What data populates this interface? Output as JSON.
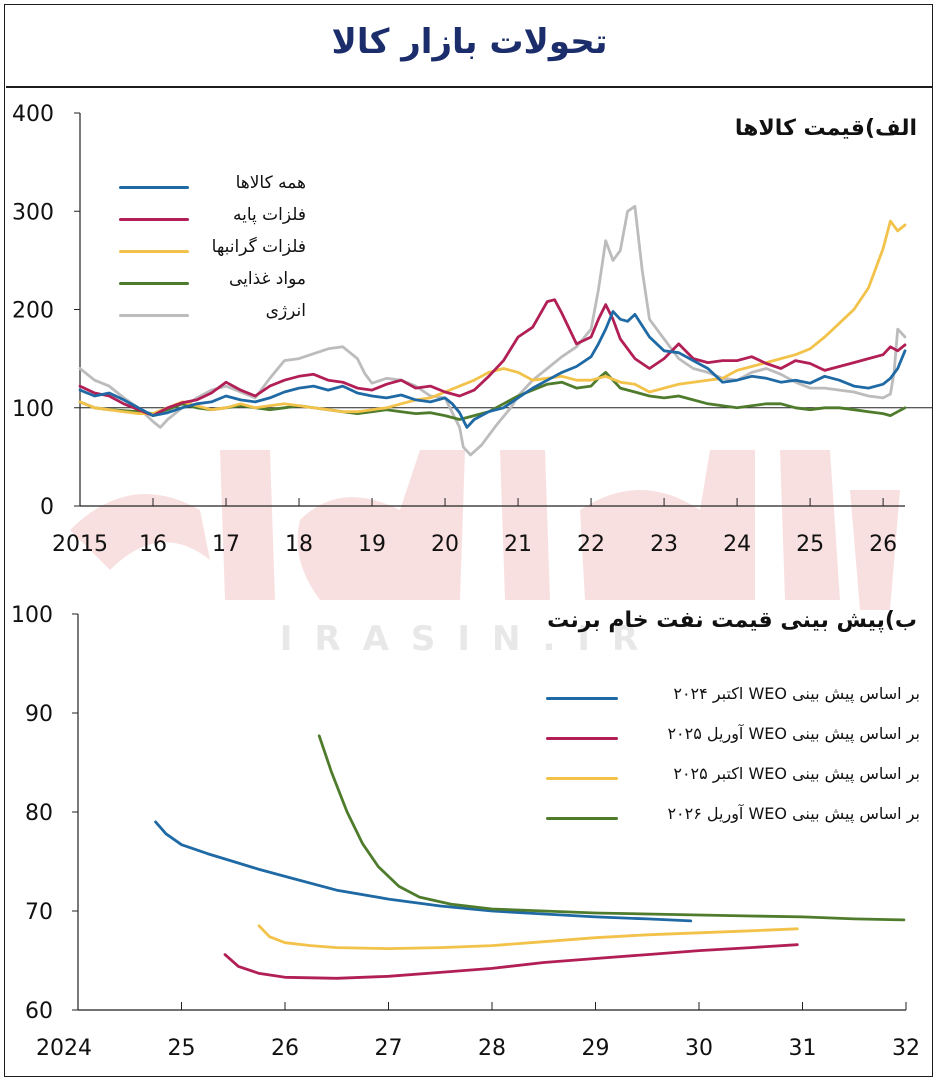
{
  "page": {
    "title": "تحولات بازار کالا",
    "watermark_text": "IRASIN.IR"
  },
  "chart_data": [
    {
      "type": "line",
      "title": "الف)قیمت کالاها",
      "xlabel": "",
      "ylabel": "",
      "x_tick_labels": [
        "2015",
        "16",
        "17",
        "18",
        "19",
        "20",
        "21",
        "22",
        "23",
        "24",
        "25",
        "26"
      ],
      "y_tick_labels": [
        "0",
        "100",
        "200",
        "300",
        "400"
      ],
      "ylim": [
        0,
        400
      ],
      "xlim": [
        2015.0,
        2026.3
      ],
      "reference_line": 100,
      "grid": false,
      "legend_position": "top-left",
      "series": [
        {
          "name": "همه کالاها",
          "color": "#1f6aa5",
          "x": [
            2015.0,
            2015.2,
            2015.4,
            2015.6,
            2015.8,
            2016.0,
            2016.2,
            2016.4,
            2016.6,
            2016.8,
            2017.0,
            2017.2,
            2017.4,
            2017.6,
            2017.8,
            2018.0,
            2018.2,
            2018.4,
            2018.6,
            2018.8,
            2019.0,
            2019.2,
            2019.4,
            2019.6,
            2019.8,
            2020.0,
            2020.1,
            2020.2,
            2020.3,
            2020.4,
            2020.6,
            2020.8,
            2021.0,
            2021.2,
            2021.4,
            2021.6,
            2021.8,
            2022.0,
            2022.1,
            2022.2,
            2022.3,
            2022.4,
            2022.5,
            2022.6,
            2022.8,
            2023.0,
            2023.2,
            2023.4,
            2023.6,
            2023.8,
            2024.0,
            2024.2,
            2024.4,
            2024.6,
            2024.8,
            2025.0,
            2025.2,
            2025.4,
            2025.6,
            2025.8,
            2026.0,
            2026.1,
            2026.2,
            2026.3
          ],
          "y": [
            118,
            112,
            115,
            108,
            100,
            92,
            95,
            100,
            104,
            106,
            112,
            108,
            106,
            110,
            116,
            120,
            122,
            118,
            122,
            115,
            112,
            110,
            113,
            108,
            106,
            110,
            104,
            95,
            80,
            88,
            96,
            100,
            110,
            120,
            128,
            136,
            142,
            152,
            165,
            180,
            198,
            190,
            188,
            195,
            172,
            158,
            156,
            148,
            140,
            126,
            128,
            132,
            130,
            126,
            128,
            125,
            132,
            128,
            122,
            120,
            124,
            130,
            140,
            158
          ]
        },
        {
          "name": "فلزات پایه",
          "color": "#b11f56",
          "x": [
            2015.0,
            2015.2,
            2015.4,
            2015.6,
            2015.8,
            2016.0,
            2016.2,
            2016.4,
            2016.6,
            2016.8,
            2017.0,
            2017.2,
            2017.4,
            2017.6,
            2017.8,
            2018.0,
            2018.2,
            2018.4,
            2018.6,
            2018.8,
            2019.0,
            2019.2,
            2019.4,
            2019.6,
            2019.8,
            2020.0,
            2020.2,
            2020.4,
            2020.6,
            2020.8,
            2021.0,
            2021.2,
            2021.4,
            2021.5,
            2021.6,
            2021.8,
            2022.0,
            2022.1,
            2022.2,
            2022.3,
            2022.4,
            2022.6,
            2022.8,
            2023.0,
            2023.2,
            2023.4,
            2023.6,
            2023.8,
            2024.0,
            2024.2,
            2024.4,
            2024.6,
            2024.8,
            2025.0,
            2025.2,
            2025.4,
            2025.6,
            2025.8,
            2026.0,
            2026.1,
            2026.2,
            2026.3
          ],
          "y": [
            122,
            115,
            112,
            104,
            98,
            92,
            100,
            105,
            108,
            115,
            126,
            118,
            112,
            122,
            128,
            132,
            134,
            128,
            126,
            120,
            118,
            124,
            128,
            120,
            122,
            116,
            112,
            118,
            132,
            148,
            172,
            182,
            208,
            210,
            196,
            165,
            172,
            190,
            205,
            190,
            170,
            150,
            140,
            150,
            165,
            150,
            146,
            148,
            148,
            152,
            145,
            140,
            148,
            145,
            138,
            142,
            146,
            150,
            154,
            162,
            158,
            164
          ]
        },
        {
          "name": "فلزات گرانبها",
          "color": "#f2c24a",
          "x": [
            2015.0,
            2015.2,
            2015.4,
            2015.6,
            2015.8,
            2016.0,
            2016.2,
            2016.4,
            2016.6,
            2016.8,
            2017.0,
            2017.2,
            2017.4,
            2017.6,
            2017.8,
            2018.0,
            2018.2,
            2018.4,
            2018.6,
            2018.8,
            2019.0,
            2019.2,
            2019.4,
            2019.6,
            2019.8,
            2020.0,
            2020.2,
            2020.4,
            2020.6,
            2020.8,
            2021.0,
            2021.2,
            2021.4,
            2021.6,
            2021.8,
            2022.0,
            2022.2,
            2022.4,
            2022.6,
            2022.8,
            2023.0,
            2023.2,
            2023.4,
            2023.6,
            2023.8,
            2024.0,
            2024.2,
            2024.4,
            2024.6,
            2024.8,
            2025.0,
            2025.2,
            2025.4,
            2025.6,
            2025.8,
            2026.0,
            2026.1,
            2026.2,
            2026.3
          ],
          "y": [
            106,
            100,
            98,
            96,
            94,
            94,
            100,
            106,
            102,
            98,
            100,
            104,
            100,
            102,
            104,
            102,
            100,
            98,
            96,
            96,
            98,
            100,
            104,
            108,
            110,
            116,
            122,
            128,
            136,
            140,
            136,
            128,
            130,
            132,
            128,
            128,
            132,
            126,
            124,
            116,
            120,
            124,
            126,
            128,
            130,
            138,
            142,
            146,
            150,
            154,
            160,
            172,
            186,
            200,
            222,
            262,
            290,
            280,
            286
          ]
        },
        {
          "name": "مواد غذایی",
          "color": "#4e7c2c",
          "x": [
            2015.0,
            2015.2,
            2015.4,
            2015.6,
            2015.8,
            2016.0,
            2016.2,
            2016.4,
            2016.6,
            2016.8,
            2017.0,
            2017.2,
            2017.4,
            2017.6,
            2017.8,
            2018.0,
            2018.2,
            2018.4,
            2018.6,
            2018.8,
            2019.0,
            2019.2,
            2019.4,
            2019.6,
            2019.8,
            2020.0,
            2020.2,
            2020.4,
            2020.6,
            2020.8,
            2021.0,
            2021.2,
            2021.4,
            2021.6,
            2021.8,
            2022.0,
            2022.1,
            2022.2,
            2022.3,
            2022.4,
            2022.6,
            2022.8,
            2023.0,
            2023.2,
            2023.4,
            2023.6,
            2023.8,
            2024.0,
            2024.2,
            2024.4,
            2024.6,
            2024.8,
            2025.0,
            2025.2,
            2025.4,
            2025.6,
            2025.8,
            2026.0,
            2026.1,
            2026.2,
            2026.3
          ],
          "y": [
            106,
            100,
            98,
            97,
            96,
            94,
            98,
            104,
            100,
            98,
            100,
            102,
            100,
            98,
            100,
            102,
            100,
            98,
            96,
            94,
            96,
            98,
            96,
            94,
            95,
            92,
            88,
            92,
            96,
            104,
            112,
            118,
            124,
            126,
            120,
            122,
            130,
            136,
            128,
            120,
            116,
            112,
            110,
            112,
            108,
            104,
            102,
            100,
            102,
            104,
            104,
            100,
            98,
            100,
            100,
            98,
            96,
            94,
            92,
            96,
            100
          ]
        },
        {
          "name": "انرژی",
          "color": "#bcbcbc",
          "x": [
            2015.0,
            2015.2,
            2015.4,
            2015.6,
            2015.8,
            2016.0,
            2016.1,
            2016.2,
            2016.4,
            2016.6,
            2016.8,
            2017.0,
            2017.2,
            2017.4,
            2017.6,
            2017.8,
            2018.0,
            2018.2,
            2018.4,
            2018.6,
            2018.8,
            2018.9,
            2019.0,
            2019.2,
            2019.4,
            2019.6,
            2019.8,
            2020.0,
            2020.2,
            2020.25,
            2020.35,
            2020.5,
            2020.7,
            2020.9,
            2021.0,
            2021.2,
            2021.4,
            2021.6,
            2021.8,
            2022.0,
            2022.1,
            2022.2,
            2022.3,
            2022.4,
            2022.5,
            2022.6,
            2022.7,
            2022.8,
            2023.0,
            2023.2,
            2023.4,
            2023.6,
            2023.8,
            2024.0,
            2024.2,
            2024.4,
            2024.6,
            2024.8,
            2025.0,
            2025.2,
            2025.4,
            2025.6,
            2025.8,
            2026.0,
            2026.1,
            2026.15,
            2026.2,
            2026.3
          ],
          "y": [
            140,
            128,
            122,
            110,
            100,
            86,
            80,
            88,
            100,
            110,
            118,
            122,
            116,
            110,
            130,
            148,
            150,
            155,
            160,
            162,
            150,
            135,
            125,
            130,
            128,
            122,
            112,
            110,
            80,
            60,
            52,
            62,
            82,
            100,
            112,
            128,
            140,
            152,
            162,
            180,
            220,
            270,
            250,
            260,
            300,
            305,
            240,
            190,
            170,
            150,
            140,
            136,
            130,
            128,
            136,
            140,
            134,
            126,
            120,
            120,
            118,
            116,
            112,
            110,
            114,
            135,
            180,
            172
          ]
        }
      ]
    },
    {
      "type": "line",
      "title": "ب)پیش بینی قیمت نفت خام برنت",
      "xlabel": "",
      "ylabel": "",
      "x_tick_labels": [
        "2024",
        "25",
        "26",
        "27",
        "28",
        "29",
        "30",
        "31",
        "32"
      ],
      "y_tick_labels": [
        "60",
        "70",
        "80",
        "90",
        "100"
      ],
      "ylim": [
        60,
        100
      ],
      "xlim": [
        2024.0,
        2032.0
      ],
      "grid": false,
      "legend_position": "top-right",
      "series": [
        {
          "name": "بر اساس پیش بینی WEO اکتبر ۲۰۲۴",
          "color": "#1f6aa5",
          "x": [
            2024.75,
            2024.85,
            2025.0,
            2025.25,
            2025.5,
            2025.75,
            2026.0,
            2026.5,
            2027.0,
            2027.5,
            2028.0,
            2028.5,
            2029.0,
            2029.5,
            2029.92
          ],
          "y": [
            79.0,
            77.8,
            76.7,
            75.8,
            75.0,
            74.2,
            73.5,
            72.1,
            71.2,
            70.5,
            70.0,
            69.7,
            69.4,
            69.2,
            69.0
          ]
        },
        {
          "name": "بر اساس پیش بینی WEO آوریل ۲۰۲۵",
          "color": "#b11f56",
          "x": [
            2025.42,
            2025.55,
            2025.75,
            2026.0,
            2026.5,
            2027.0,
            2027.5,
            2028.0,
            2028.5,
            2029.0,
            2029.5,
            2030.0,
            2030.5,
            2030.95
          ],
          "y": [
            65.6,
            64.4,
            63.7,
            63.3,
            63.2,
            63.4,
            63.8,
            64.2,
            64.8,
            65.2,
            65.6,
            66.0,
            66.3,
            66.6
          ]
        },
        {
          "name": "بر اساس پیش بینی WEO اکتبر ۲۰۲۵",
          "color": "#f2c24a",
          "x": [
            2025.75,
            2025.85,
            2026.0,
            2026.25,
            2026.5,
            2027.0,
            2027.5,
            2028.0,
            2028.5,
            2029.0,
            2029.5,
            2030.0,
            2030.5,
            2030.95
          ],
          "y": [
            68.5,
            67.4,
            66.8,
            66.5,
            66.3,
            66.2,
            66.3,
            66.5,
            66.9,
            67.3,
            67.6,
            67.8,
            68.0,
            68.2
          ]
        },
        {
          "name": "بر اساس پیش بینی WEO آوریل ۲۰۲۶",
          "color": "#4e7c2c",
          "x": [
            2026.33,
            2026.45,
            2026.6,
            2026.75,
            2026.9,
            2027.1,
            2027.3,
            2027.6,
            2028.0,
            2028.5,
            2029.0,
            2029.5,
            2030.0,
            2030.5,
            2031.0,
            2031.5,
            2031.98
          ],
          "y": [
            87.7,
            84.0,
            80.0,
            76.8,
            74.5,
            72.5,
            71.4,
            70.7,
            70.2,
            70.0,
            69.8,
            69.7,
            69.6,
            69.5,
            69.4,
            69.2,
            69.1
          ]
        }
      ]
    }
  ]
}
